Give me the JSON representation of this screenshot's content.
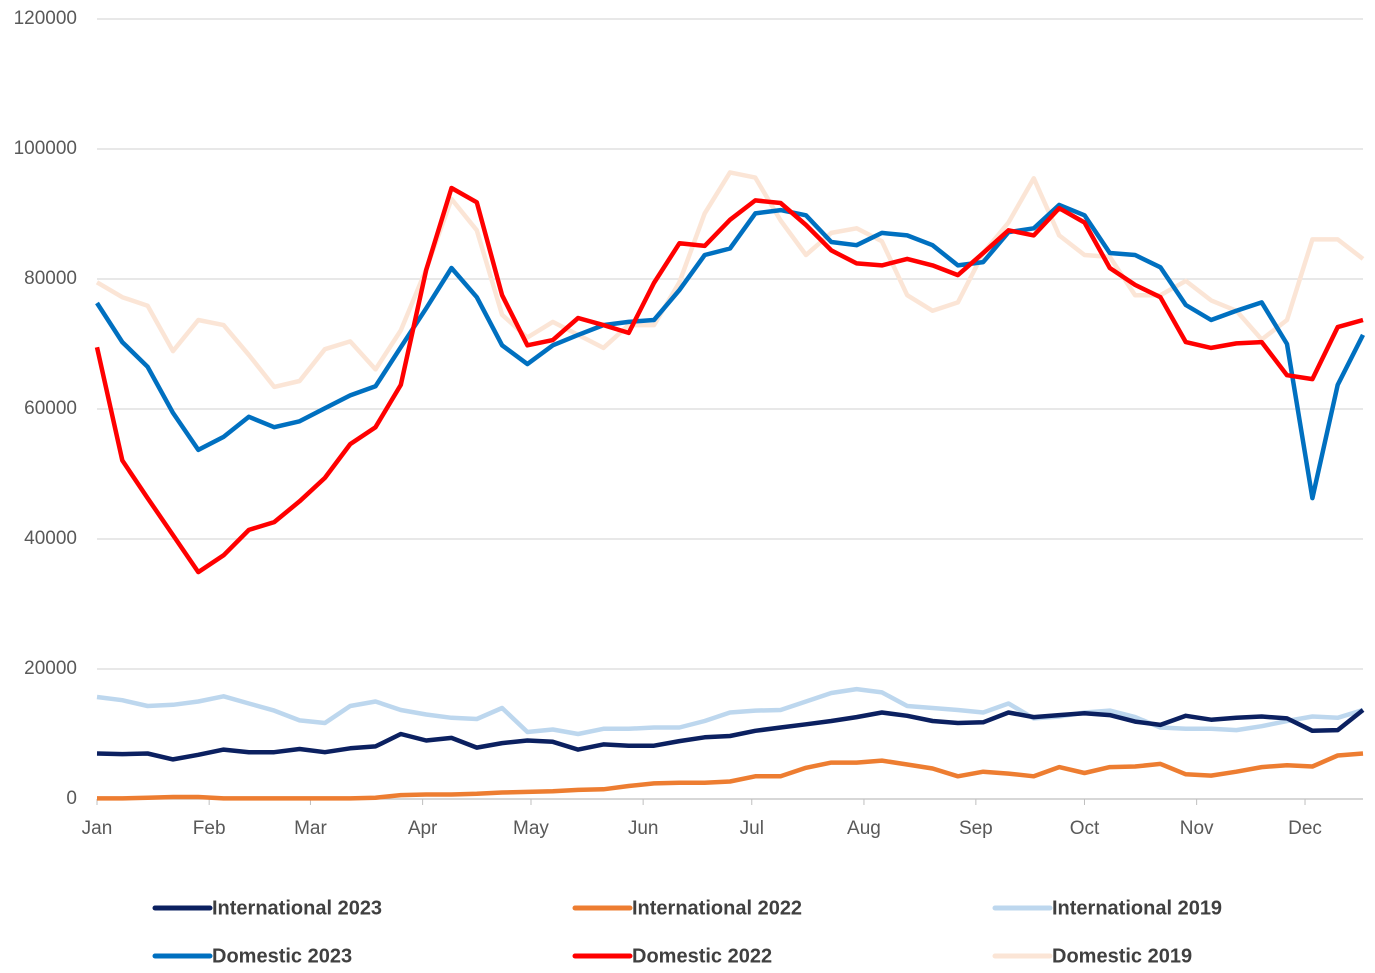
{
  "chart_data": {
    "type": "line",
    "x": [
      0,
      1,
      2,
      3,
      4,
      5,
      6,
      7,
      8,
      9,
      10,
      11,
      12,
      13,
      14,
      15,
      16,
      17,
      18,
      19,
      20,
      21,
      22,
      23,
      24,
      25,
      26,
      27,
      28,
      29,
      30,
      31,
      32,
      33,
      34,
      35,
      36,
      37,
      38,
      39,
      40,
      41,
      42,
      43,
      44,
      45,
      46,
      47,
      48,
      49,
      50
    ],
    "xlim": [
      0,
      50
    ],
    "xticks": [
      {
        "value": 0,
        "label": "Jan"
      },
      {
        "value": 4.43,
        "label": "Feb"
      },
      {
        "value": 8.43,
        "label": "Mar"
      },
      {
        "value": 12.86,
        "label": "Apr"
      },
      {
        "value": 17.14,
        "label": "May"
      },
      {
        "value": 21.57,
        "label": "Jun"
      },
      {
        "value": 25.86,
        "label": "Jul"
      },
      {
        "value": 30.29,
        "label": "Aug"
      },
      {
        "value": 34.71,
        "label": "Sep"
      },
      {
        "value": 39,
        "label": "Oct"
      },
      {
        "value": 43.43,
        "label": "Nov"
      },
      {
        "value": 47.71,
        "label": "Dec"
      }
    ],
    "ylim": [
      0,
      120000
    ],
    "yticks": [
      0,
      20000,
      40000,
      60000,
      80000,
      100000,
      120000
    ],
    "grid": true,
    "legend": "bottom",
    "series": [
      {
        "name": "International 2023",
        "color": "#0b2060",
        "values": [
          7000,
          6900,
          7000,
          6100,
          6800,
          7600,
          7200,
          7200,
          7700,
          7200,
          7800,
          8100,
          10000,
          9000,
          9400,
          7900,
          8600,
          9000,
          8800,
          7600,
          8400,
          8200,
          8200,
          8900,
          9500,
          9700,
          10500,
          11000,
          11500,
          12000,
          12600,
          13300,
          12800,
          12000,
          11700,
          11800,
          13300,
          12600,
          12900,
          13200,
          12900,
          11900,
          11400,
          12800,
          12200,
          12500,
          12700,
          12400,
          10500,
          10600,
          13700
        ]
      },
      {
        "name": "International 2022",
        "color": "#ed7d31",
        "values": [
          100,
          100,
          200,
          300,
          300,
          100,
          100,
          100,
          100,
          100,
          100,
          200,
          600,
          700,
          700,
          800,
          1000,
          1100,
          1200,
          1400,
          1500,
          2000,
          2400,
          2500,
          2500,
          2700,
          3500,
          3500,
          4800,
          5600,
          5600,
          5900,
          5300,
          4700,
          3500,
          4200,
          3900,
          3500,
          4900,
          4000,
          4900,
          5000,
          5400,
          3800,
          3600,
          4200,
          4900,
          5200,
          5000,
          6700,
          7000
        ]
      },
      {
        "name": "International 2019",
        "color": "#bdd7ee",
        "values": [
          15700,
          15200,
          14300,
          14500,
          15000,
          15800,
          14700,
          13600,
          12100,
          11700,
          14300,
          15000,
          13700,
          13000,
          12500,
          12300,
          14000,
          10300,
          10700,
          10000,
          10800,
          10800,
          11000,
          11000,
          12000,
          13300,
          13600,
          13700,
          15000,
          16300,
          16900,
          16400,
          14300,
          14000,
          13700,
          13300,
          14700,
          12400,
          12700,
          13300,
          13600,
          12600,
          11000,
          10800,
          10800,
          10600,
          11200,
          12000,
          12700,
          12500,
          13700
        ]
      },
      {
        "name": "Domestic 2023",
        "color": "#0070c0",
        "values": [
          76300,
          70300,
          66500,
          59400,
          53700,
          55700,
          58800,
          57200,
          58100,
          60100,
          62100,
          63500,
          69500,
          75500,
          81700,
          77200,
          69800,
          66900,
          69800,
          71400,
          72900,
          73400,
          73700,
          78300,
          83700,
          84700,
          90100,
          90600,
          89800,
          85700,
          85200,
          87100,
          86700,
          85200,
          82100,
          82600,
          87200,
          87800,
          91400,
          89800,
          84000,
          83700,
          81800,
          76000,
          73700,
          75100,
          76400,
          70000,
          46300,
          63700,
          71400
        ]
      },
      {
        "name": "Domestic 2022",
        "color": "#ff0000",
        "values": [
          69500,
          52100,
          46300,
          40600,
          34900,
          37500,
          41400,
          42600,
          45800,
          49400,
          54600,
          57200,
          63700,
          81400,
          94000,
          91800,
          77500,
          69800,
          70600,
          74000,
          72900,
          71700,
          79400,
          85500,
          85100,
          89100,
          92100,
          91700,
          88300,
          84400,
          82400,
          82100,
          83100,
          82100,
          80600,
          84000,
          87500,
          86700,
          90900,
          88700,
          81700,
          79100,
          77200,
          70300,
          69400,
          70100,
          70300,
          65200,
          64600,
          72600,
          73700
        ]
      },
      {
        "name": "Domestic 2019",
        "color": "#fbe5d6",
        "values": [
          79500,
          77200,
          75900,
          68900,
          73700,
          72900,
          68300,
          63400,
          64300,
          69200,
          70400,
          66100,
          72100,
          81500,
          92300,
          87500,
          74500,
          71000,
          73400,
          71400,
          69400,
          72900,
          72900,
          79500,
          90100,
          96400,
          95600,
          89000,
          83700,
          87100,
          87800,
          85800,
          77500,
          75100,
          76400,
          84000,
          88700,
          95500,
          86700,
          83700,
          83400,
          77500,
          77500,
          79700,
          76700,
          75100,
          70700,
          73700,
          86100,
          86100,
          83100
        ]
      }
    ]
  }
}
